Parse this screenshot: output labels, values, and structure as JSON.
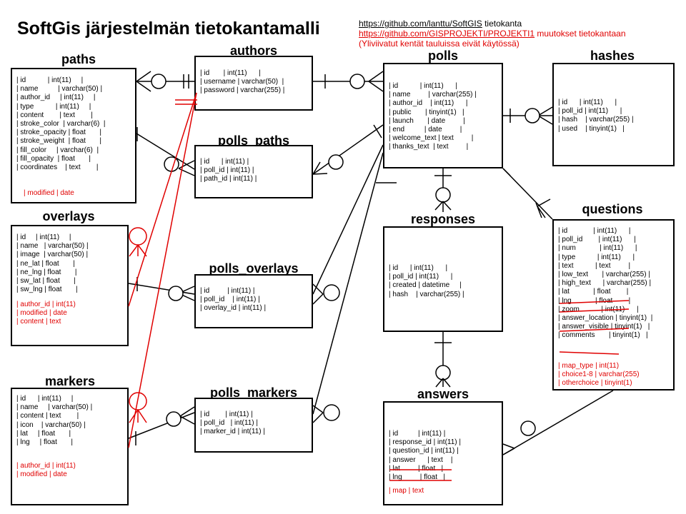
{
  "title": "SoftGis järjestelmän tietokantamalli",
  "refs": {
    "line1_link": "https://github.com/lanttu/SoftGIS",
    "line1_text": " tietokanta",
    "line2_link": "https://github.com/GISPROJEKTI/PROJEKTI1",
    "line2_text": " muutokset tietokantaan",
    "line3_text": "(Yliviivatut kentät tauluissa eivät käytössä)"
  },
  "colors": {
    "line": "#000000",
    "changes": "#e00000"
  },
  "tables": {
    "paths": {
      "name": "paths",
      "fields": "| id           | int(11)     |\n| name          | varchar(50) |\n| author_id     | int(11)     |\n| type           | int(11)     |\n| content        | text        |\n| stroke_color  | varchar(6)  |\n| stroke_opacity | float       |\n| stroke_weight  | float       |\n| fill_color     | varchar(6)  |\n| fill_opacity  | float       |\n| coordinates    | text        |",
      "changes": "| modified | date"
    },
    "overlays": {
      "name": "overlays",
      "fields": "| id     | int(11)     |\n| name   | varchar(50) |\n| image  | varchar(50) |\n| ne_lat | float       |\n| ne_lng | float       |\n| sw_lat | float       |\n| sw_lng | float       |",
      "changes": "| author_id | int(11)\n| modified | date\n| content | text"
    },
    "markers": {
      "name": "markers",
      "fields": "| id      | int(11)     |\n| name     | varchar(50) |\n| content | text        |\n| icon    | varchar(50) |\n| lat     | float       |\n| lng     | float       |",
      "changes": "| author_id | int(11)\n| modified | date"
    },
    "authors": {
      "name": "authors",
      "fields": "| id       | int(11)      |\n| username | varchar(50)  |\n| password | varchar(255) |"
    },
    "polls_paths": {
      "name": "polls_paths",
      "fields": "| id      | int(11) |\n| poll_id | int(11) |\n| path_id | int(11) |"
    },
    "polls_overlays": {
      "name": "polls_overlays",
      "fields": "| id         | int(11) |\n| poll_id    | int(11) |\n| overlay_id | int(11) |"
    },
    "polls_markers": {
      "name": "polls_markers",
      "fields": "| id        | int(11) |\n| poll_id   | int(11) |\n| marker_id | int(11) |"
    },
    "polls": {
      "name": "polls",
      "fields": "| id           | int(11)      |\n| name         | varchar(255) |\n| author_id    | int(11)      |\n| public       | tinyint(1)   |\n| launch       | date         |\n| end          | date         |\n| welcome_text | text         |\n| thanks_text  | text         |"
    },
    "hashes": {
      "name": "hashes",
      "fields": "| id      | int(11)      |\n| poll_id | int(11)      |\n| hash    | varchar(255) |\n| used    | tinyint(1)   |"
    },
    "responses": {
      "name": "responses",
      "fields": "| id      | int(11)      |\n| poll_id | int(11)      |\n| created | datetime     |\n| hash    | varchar(255) |"
    },
    "answers": {
      "name": "answers",
      "fields": "| id          | int(11) |\n| response_id | int(11) |\n| question_id | int(11) |\n| answer      | text    |\n| lat         | float   |\n| lng         | float   |",
      "changes": "| map | text"
    },
    "questions": {
      "name": "questions",
      "fields": "| id             | int(11)      |\n| poll_id        | int(11)      |\n| num            | int(11)      |\n| type           | int(11)      |\n| text           | text         |\n| low_text       | varchar(255) |\n| high_text      | varchar(255) |\n| lat            | float        |\n| lng            | float        |\n| zoom           | int(11)      |\n| answer_location | tinyint(1)  |\n| answer_visible | tinyint(1)   |\n| comments       | tinyint(1)   |",
      "changes": "| map_type | int(11)\n| choice1-8 | varchar(255)\n| otherchoice | tinyint(1)"
    }
  }
}
